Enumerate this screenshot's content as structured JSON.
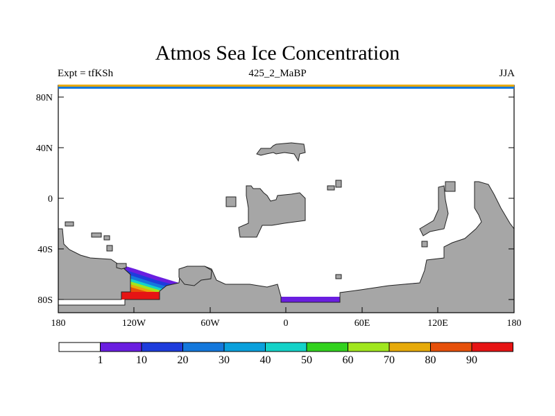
{
  "title": "Atmos Sea Ice Concentration",
  "subtitle_left": "Expt = tfKSh",
  "subtitle_center": "425_2_MaBP",
  "subtitle_right": "JJA",
  "axes": {
    "y_ticks": [
      "80N",
      "40N",
      "0",
      "40S",
      "80S"
    ],
    "x_ticks": [
      "180",
      "120W",
      "60W",
      "0",
      "60E",
      "120E",
      "180"
    ]
  },
  "colorbar": {
    "labels": [
      "1",
      "10",
      "20",
      "30",
      "40",
      "50",
      "60",
      "70",
      "80",
      "90"
    ],
    "colors": [
      "#ffffff",
      "#6a1ee0",
      "#1e3cdc",
      "#1478dc",
      "#0aa0dc",
      "#14d2c8",
      "#32d21e",
      "#a0e61e",
      "#e6aa0a",
      "#e6500a",
      "#e61414"
    ]
  },
  "colors": {
    "land": "#a6a6a6",
    "ocean": "#ffffff"
  }
}
